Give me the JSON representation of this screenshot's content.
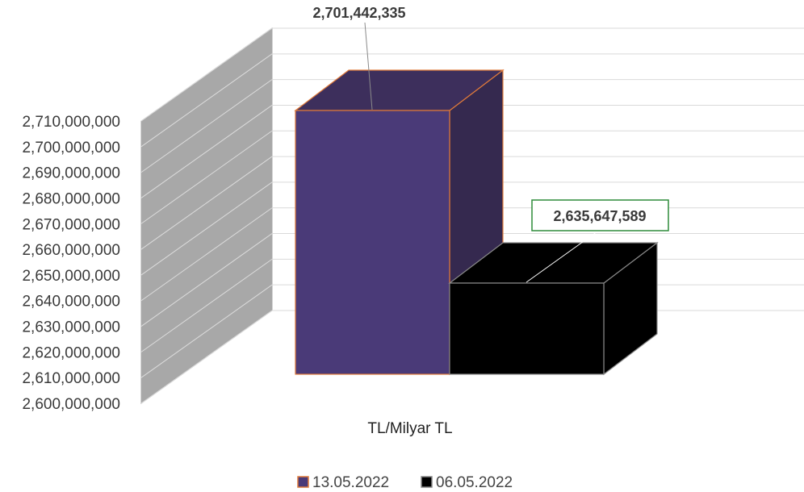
{
  "chart_data": {
    "type": "bar",
    "style": "3d-column",
    "categories": [
      "TL/Milyar TL"
    ],
    "series": [
      {
        "name": "13.05.2022",
        "values": [
          2701442335
        ],
        "label": "2,701,442,335",
        "color": "#4a3a78",
        "edge": "#e07a3a"
      },
      {
        "name": "06.05.2022",
        "values": [
          2635647589
        ],
        "label": "2,635,647,589",
        "color": "#000000",
        "edge": "#888888"
      }
    ],
    "xlabel": "TL/Milyar TL",
    "ylabel": "",
    "title": "",
    "ylim": [
      2600000000,
      2710000000
    ],
    "yticks": [
      "2,600,000,000",
      "2,610,000,000",
      "2,620,000,000",
      "2,630,000,000",
      "2,640,000,000",
      "2,650,000,000",
      "2,660,000,000",
      "2,670,000,000",
      "2,680,000,000",
      "2,690,000,000",
      "2,700,000,000",
      "2,710,000,000"
    ],
    "grid": true,
    "legend": "bottom",
    "label_box_color": "#2e8b3a"
  }
}
